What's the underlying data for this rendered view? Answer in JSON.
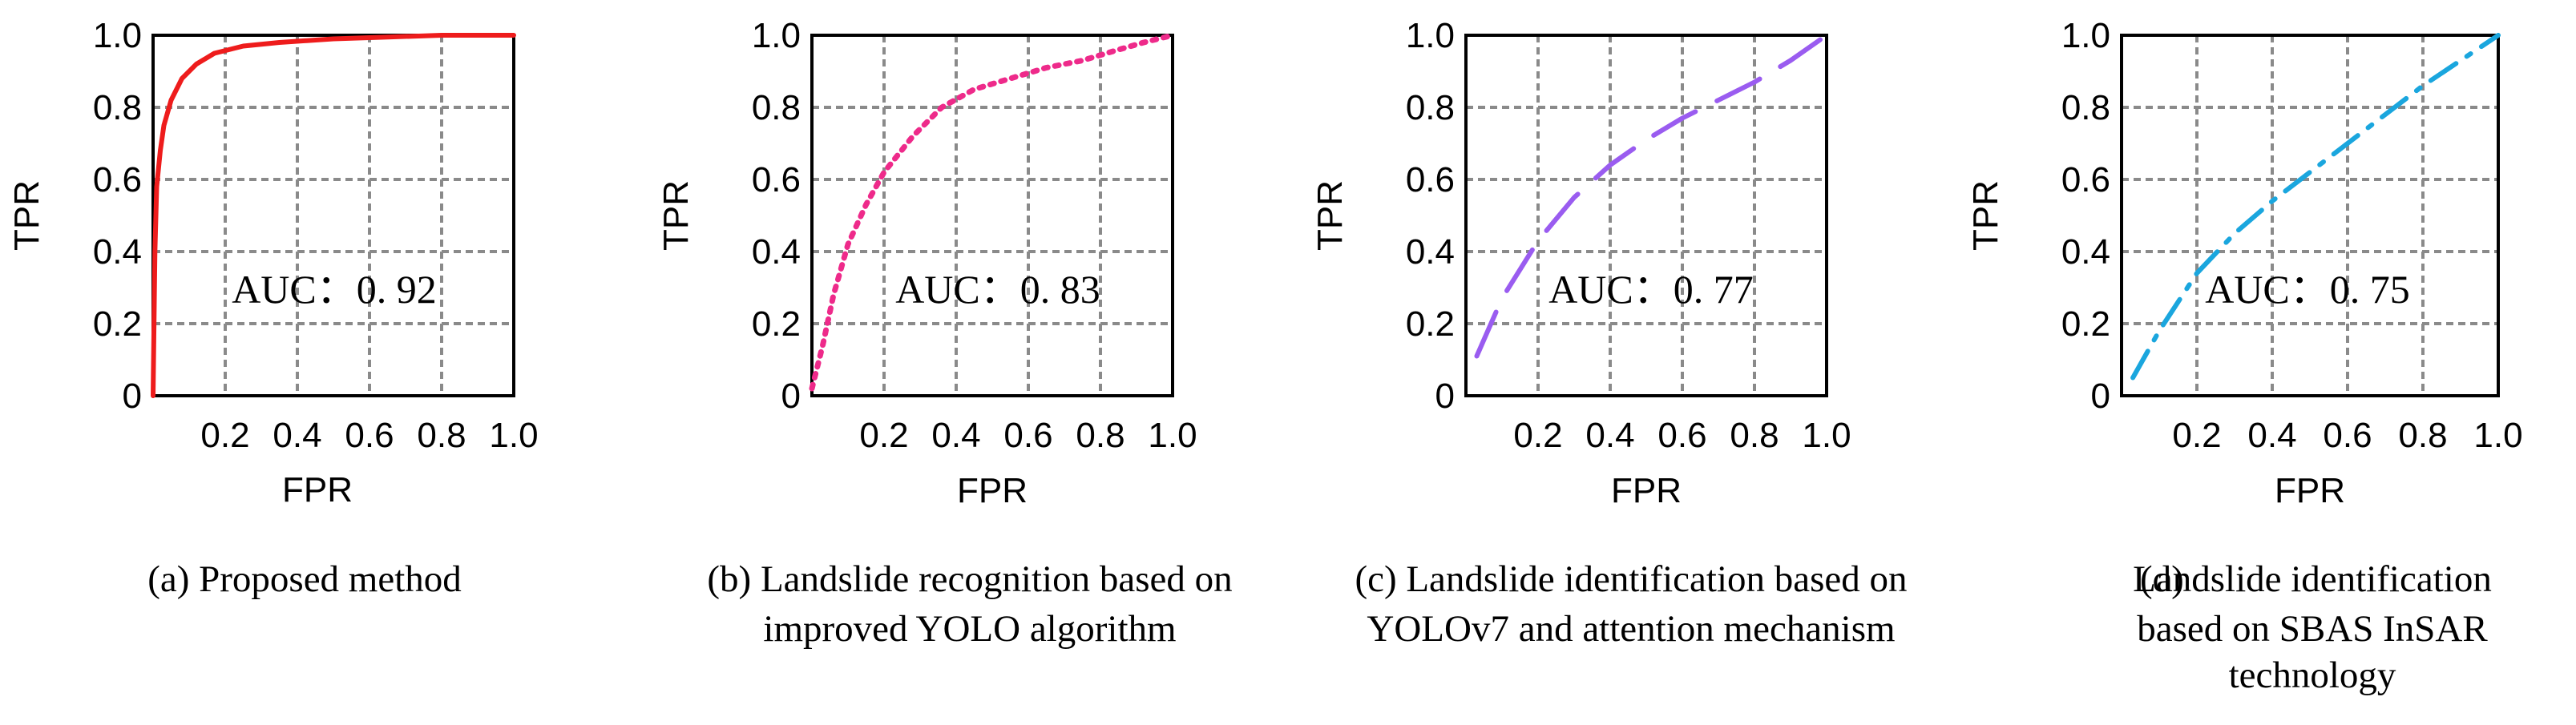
{
  "chart_data": [
    {
      "type": "line",
      "panel": "a",
      "caption_lines": [
        "(a)  Proposed method"
      ],
      "xlabel": "FPR",
      "ylabel": "TPR",
      "xlim": [
        0,
        1
      ],
      "ylim": [
        0,
        1
      ],
      "x_ticks": [
        "0.2",
        "0.4",
        "0.6",
        "0.8",
        "1.0"
      ],
      "y_ticks": [
        "0",
        "0.2",
        "0.4",
        "0.6",
        "0.8",
        "1.0"
      ],
      "grid": true,
      "annotation": "AUC：0. 92",
      "series": [
        {
          "name": "Proposed method",
          "color": "#ee1c1c",
          "style": "solid",
          "x": [
            0,
            0.005,
            0.01,
            0.02,
            0.03,
            0.05,
            0.08,
            0.12,
            0.17,
            0.25,
            0.35,
            0.5,
            0.65,
            0.8,
            1.0
          ],
          "y": [
            0,
            0.4,
            0.58,
            0.68,
            0.75,
            0.82,
            0.88,
            0.92,
            0.95,
            0.97,
            0.98,
            0.99,
            0.995,
            1.0,
            1.0
          ]
        }
      ]
    },
    {
      "type": "line",
      "panel": "b",
      "caption_lines": [
        "(b) Landslide recognition based on",
        "improved YOLO algorithm"
      ],
      "xlabel": "FPR",
      "ylabel": "TPR",
      "xlim": [
        0,
        1
      ],
      "ylim": [
        0,
        1
      ],
      "x_ticks": [
        "0.2",
        "0.4",
        "0.6",
        "0.8",
        "1.0"
      ],
      "y_ticks": [
        "0",
        "0.2",
        "0.4",
        "0.6",
        "0.8",
        "1.0"
      ],
      "grid": true,
      "annotation": "AUC：0. 83",
      "series": [
        {
          "name": "Landslide recognition based on improved YOLO algorithm",
          "color": "#ee2a8a",
          "style": "dotted",
          "x": [
            0,
            0.03,
            0.06,
            0.1,
            0.15,
            0.2,
            0.28,
            0.36,
            0.45,
            0.55,
            0.65,
            0.75,
            0.85,
            0.92,
            1.0
          ],
          "y": [
            0.02,
            0.14,
            0.28,
            0.42,
            0.53,
            0.62,
            0.72,
            0.8,
            0.85,
            0.88,
            0.91,
            0.93,
            0.96,
            0.98,
            1.0
          ]
        }
      ]
    },
    {
      "type": "line",
      "panel": "c",
      "caption_lines": [
        "(c) Landslide identification based on",
        "YOLOv7 and attention mechanism"
      ],
      "xlabel": "FPR",
      "ylabel": "TPR",
      "xlim": [
        0,
        1
      ],
      "ylim": [
        0,
        1
      ],
      "x_ticks": [
        "0.2",
        "0.4",
        "0.6",
        "0.8",
        "1.0"
      ],
      "y_ticks": [
        "0",
        "0.2",
        "0.4",
        "0.6",
        "0.8",
        "1.0"
      ],
      "grid": true,
      "annotation": "AUC：0. 77",
      "series": [
        {
          "name": "Landslide identification based on YOLOv7 and attention mechanism",
          "color": "#9a5cf0",
          "style": "dashed",
          "x": [
            0.03,
            0.1,
            0.2,
            0.3,
            0.4,
            0.5,
            0.6,
            0.7,
            0.8,
            0.9,
            1.0
          ],
          "y": [
            0.11,
            0.27,
            0.43,
            0.55,
            0.64,
            0.71,
            0.77,
            0.82,
            0.87,
            0.93,
            1.0
          ]
        }
      ]
    },
    {
      "type": "line",
      "panel": "d",
      "caption_lines": [
        "(d)",
        "Landslide identification",
        "based on SBAS InSAR",
        "technology"
      ],
      "xlabel": "FPR",
      "ylabel": "TPR",
      "xlim": [
        0,
        1
      ],
      "ylim": [
        0,
        1
      ],
      "x_ticks": [
        "0.2",
        "0.4",
        "0.6",
        "0.8",
        "1.0"
      ],
      "y_ticks": [
        "0",
        "0.2",
        "0.4",
        "0.6",
        "0.8",
        "1.0"
      ],
      "grid": true,
      "annotation": "AUC：0. 75",
      "series": [
        {
          "name": "Landslide identification based on SBAS InSAR technology",
          "color": "#1aa6de",
          "style": "dashdot",
          "x": [
            0.03,
            0.1,
            0.2,
            0.3,
            0.4,
            0.5,
            0.6,
            0.7,
            0.8,
            0.9,
            1.0
          ],
          "y": [
            0.05,
            0.18,
            0.34,
            0.45,
            0.54,
            0.62,
            0.7,
            0.78,
            0.86,
            0.93,
            1.0
          ]
        }
      ]
    }
  ]
}
